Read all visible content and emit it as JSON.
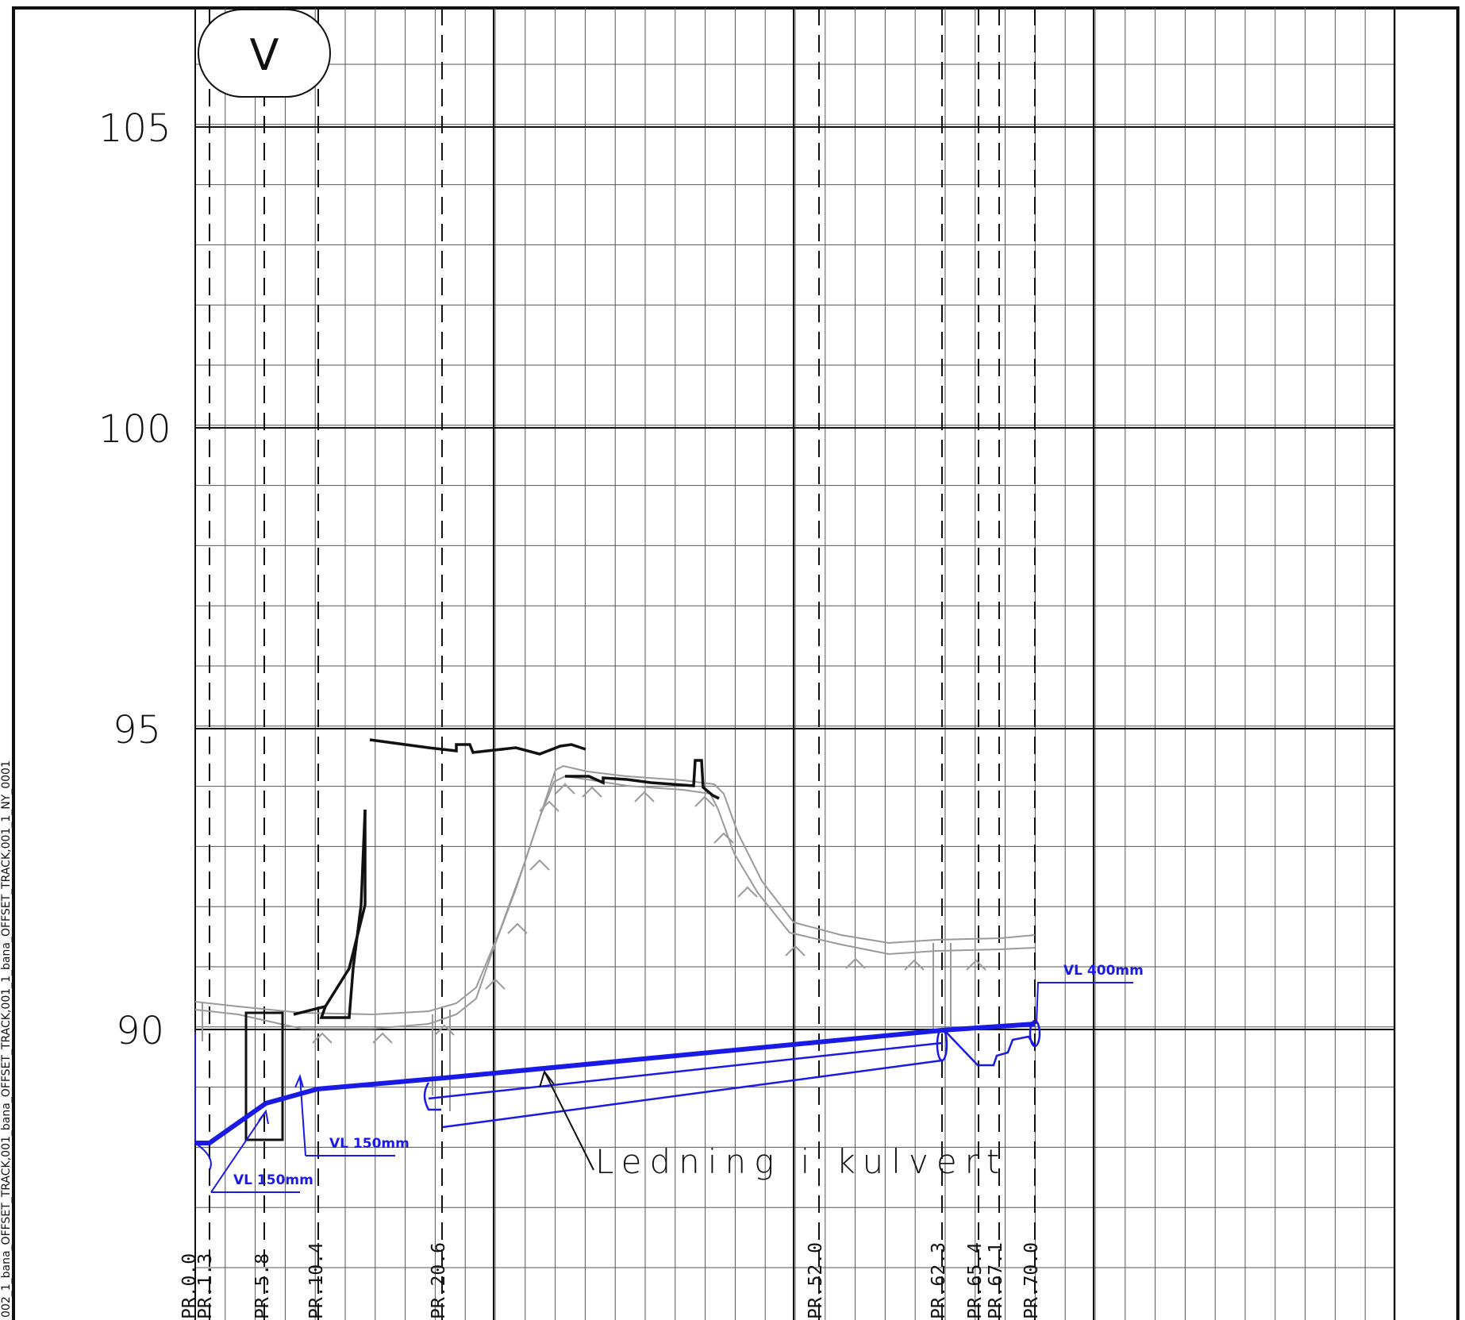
{
  "title": "",
  "view_marker": "V",
  "elevation_labels": [
    "105",
    "100",
    "95",
    "90"
  ],
  "stations": [
    "PR.0.0",
    "PR.1.3",
    "PR.5.8",
    "PR.10.4",
    "PR.20.6",
    "PR.52.0",
    "PR.62.3",
    "PR.65.4",
    "PR.67.1",
    "PR.70.0"
  ],
  "pipe_labels": {
    "left_lower": "VL 150mm",
    "left_upper": "VL 150mm",
    "right": "VL 400mm"
  },
  "annotation": "Ledning i kulvert",
  "sheet_side_label": "002_1_bana_OFFSET_TRACK,001_bana_OFFSET_TRACK,001_1_bana_OFFSET_TRACK,001_1_NY_0001",
  "colors": {
    "pipe": "#1a1ae6",
    "terrain_existing": "#9a9a9a",
    "terrain_structure": "#111111",
    "grid": "#555555"
  }
}
